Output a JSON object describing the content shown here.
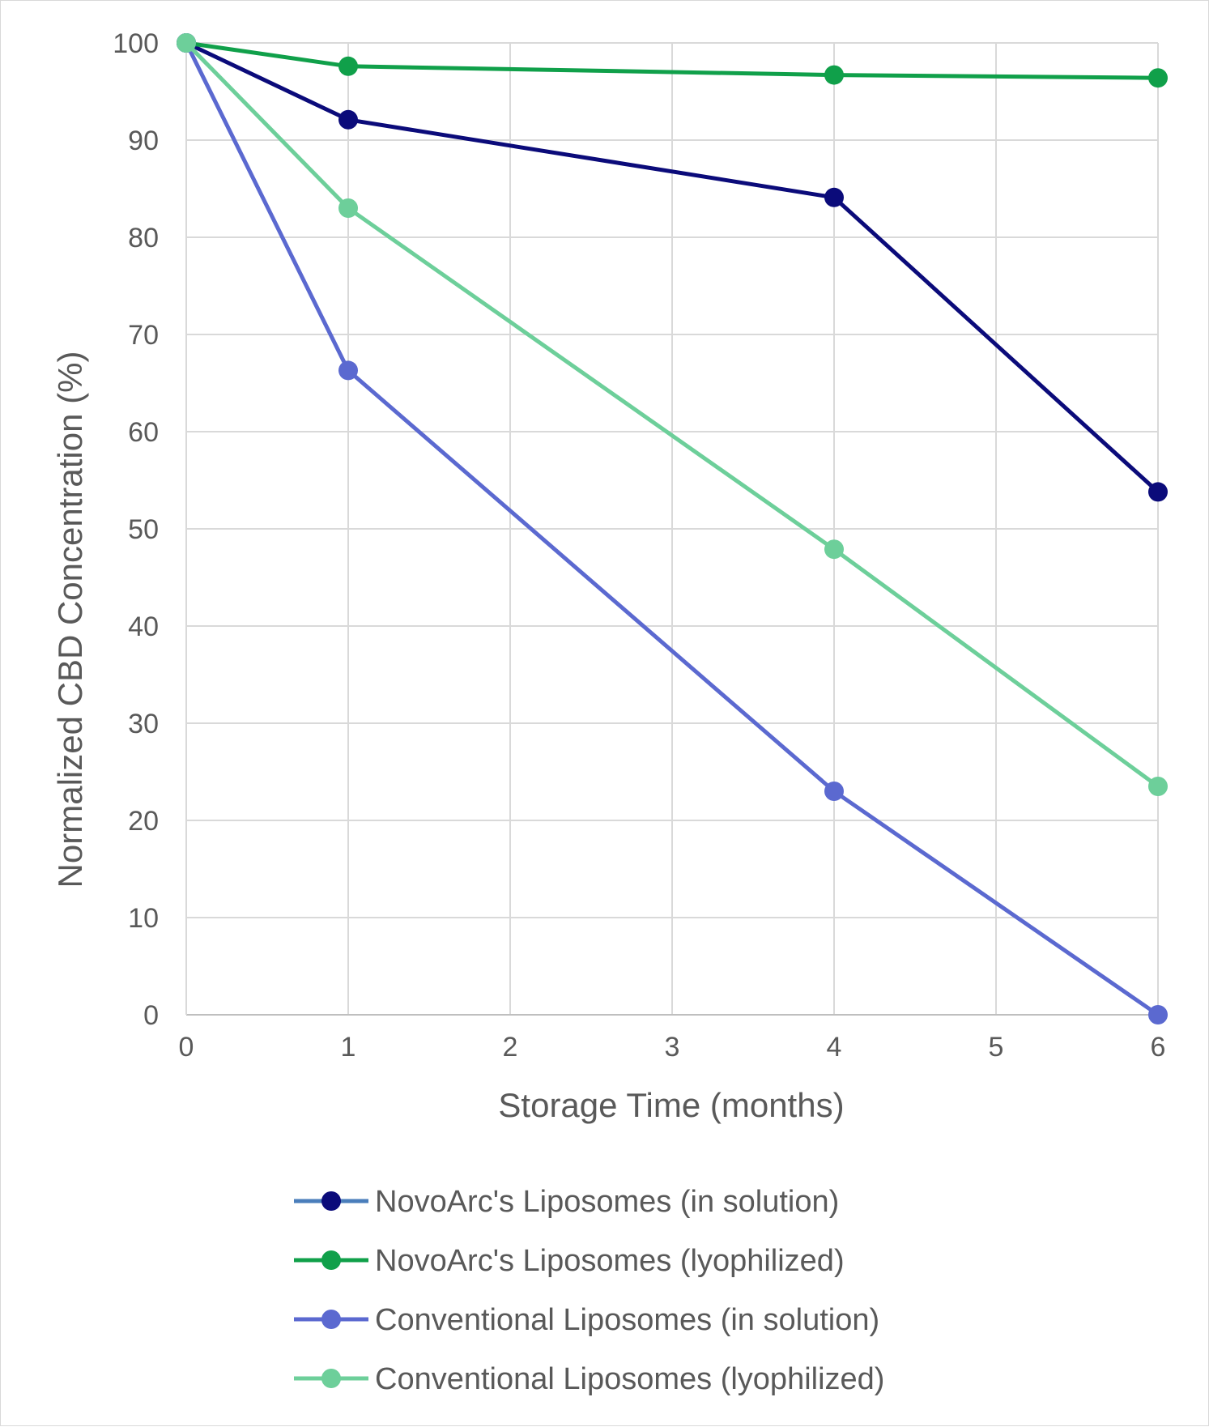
{
  "chart_data": {
    "type": "line",
    "title": "",
    "xlabel": "Storage Time (months)",
    "ylabel": "Normalized CBD Concentration (%)",
    "xlim": [
      0,
      6
    ],
    "ylim": [
      0,
      100
    ],
    "xticks": [
      0,
      1,
      2,
      3,
      4,
      5,
      6
    ],
    "xtick_labels": [
      "0",
      "1",
      "2",
      "3",
      "4",
      "5",
      "6"
    ],
    "yticks": [
      0,
      10,
      20,
      30,
      40,
      50,
      60,
      70,
      80,
      90,
      100
    ],
    "ytick_labels": [
      "0",
      "10",
      "20",
      "30",
      "40",
      "50",
      "60",
      "70",
      "80",
      "90",
      "100"
    ],
    "grid": true,
    "legend_position": "bottom",
    "x": [
      0,
      1,
      4,
      6
    ],
    "series": [
      {
        "name": "NovoArc's Liposomes (in solution)",
        "values": [
          100,
          92.1,
          84.1,
          53.8
        ],
        "color": "#0b0b7a",
        "legend_line_color": "#4a7ebb"
      },
      {
        "name": "NovoArc's Liposomes (lyophilized)",
        "values": [
          100,
          97.6,
          96.7,
          96.4
        ],
        "color": "#10a04a",
        "legend_line_color": "#10a04a"
      },
      {
        "name": "Conventional Liposomes (in solution)",
        "values": [
          100,
          66.3,
          23.0,
          0.0
        ],
        "color": "#5b69d0",
        "legend_line_color": "#5b69d0"
      },
      {
        "name": "Conventional Liposomes (lyophilized)",
        "values": [
          100,
          83.0,
          47.9,
          23.5
        ],
        "color": "#6dcf9a",
        "legend_line_color": "#6dcf9a"
      }
    ]
  }
}
